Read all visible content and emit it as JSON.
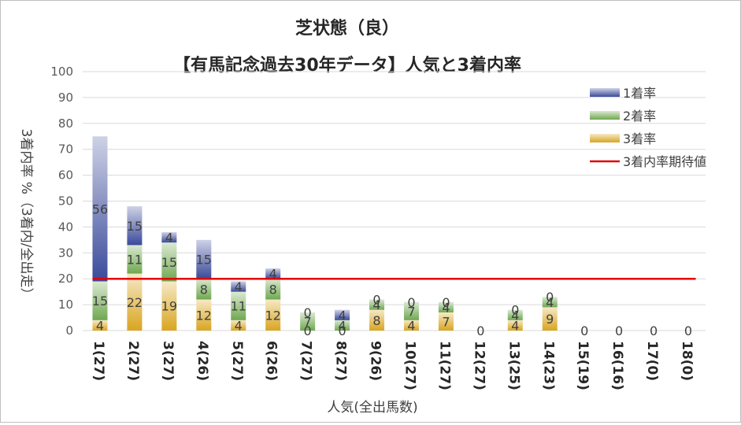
{
  "chart_data": {
    "type": "bar",
    "stacked": true,
    "title": "芝状態（良）",
    "subtitle": "【有馬記念過去30年データ】人気と3着内率",
    "xlabel": "人気(全出馬数)",
    "ylabel": "3着内率 %（3着内/全出走）",
    "ylim": [
      0,
      100
    ],
    "yticks": [
      0,
      10,
      20,
      30,
      40,
      50,
      60,
      70,
      80,
      90,
      100
    ],
    "grid": true,
    "legend_position": "top-right",
    "categories": [
      "1(27)",
      "2(27)",
      "3(27)",
      "4(26)",
      "5(27)",
      "6(26)",
      "7(27)",
      "8(27)",
      "9(26)",
      "10(27)",
      "11(27)",
      "12(27)",
      "13(25)",
      "14(23)",
      "15(19)",
      "16(16)",
      "17(0)",
      "18(0)"
    ],
    "series": [
      {
        "name": "3着率",
        "color": "#d9a520",
        "values": [
          4,
          22,
          19,
          12,
          4,
          12,
          0,
          0,
          8,
          4,
          7,
          0,
          4,
          9,
          0,
          0,
          0,
          0
        ],
        "labels": [
          "4",
          "22",
          "19",
          "12",
          "4",
          "12",
          "0",
          "0",
          "8",
          "4",
          "7",
          "0",
          "4",
          "9",
          "0",
          "0",
          "0",
          "0"
        ]
      },
      {
        "name": "2着率",
        "color": "#6fa84f",
        "values": [
          15,
          11,
          15,
          8,
          11,
          8,
          7,
          4,
          4,
          7,
          4,
          0,
          4,
          4,
          0,
          0,
          0,
          0
        ],
        "labels": [
          "15",
          "11",
          "15",
          "8",
          "11",
          "8",
          "7",
          "4",
          "4",
          "7",
          "4",
          "",
          "4",
          "4",
          "",
          "",
          "",
          ""
        ]
      },
      {
        "name": "1着率",
        "color": "#3a4a9a",
        "values": [
          56,
          15,
          4,
          15,
          4,
          4,
          0,
          4,
          0,
          0,
          0,
          0,
          0,
          0,
          0,
          0,
          0,
          0
        ],
        "labels": [
          "56",
          "15",
          "4",
          "15",
          "4",
          "4",
          "0",
          "4",
          "0",
          "0",
          "0",
          "",
          "0",
          "0",
          "",
          "",
          "",
          ""
        ]
      }
    ],
    "reference_line": {
      "name": "3着内率期待値",
      "value": 20,
      "color": "#e00000"
    }
  }
}
